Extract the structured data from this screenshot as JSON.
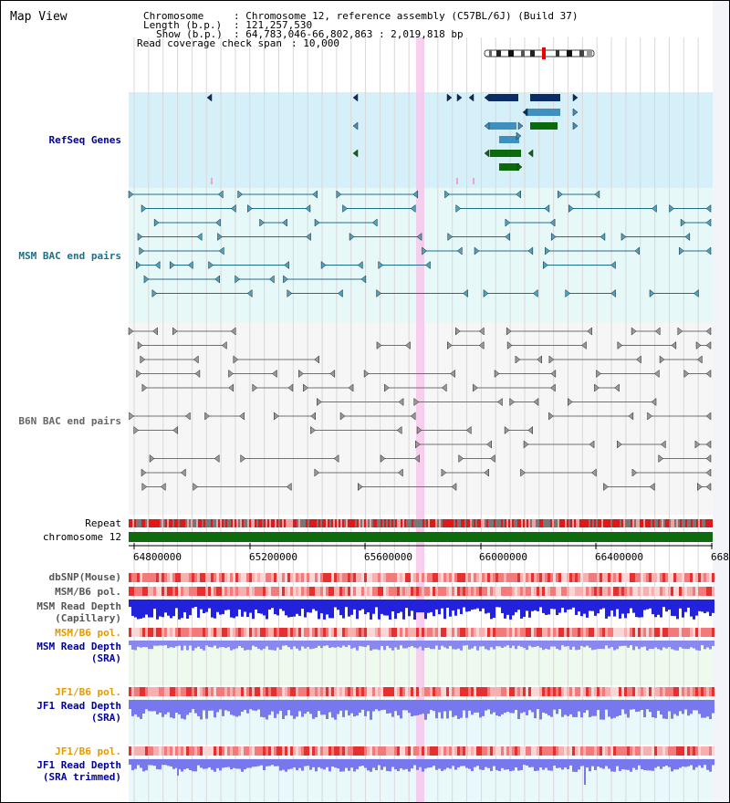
{
  "header": {
    "title": "Map View",
    "chromosome_label": "Chromosome",
    "chromosome_value": ": Chromosome 12, reference assembly (C57BL/6J) (Build 37)",
    "length_label": "Length (b.p.)",
    "length_value": ": 121,257,530",
    "show_label": "Show (b.p.)",
    "show_value": ": 64,783,046-66,802,863 : 2,019,818 bp",
    "coverage_label": "Read coverage check span",
    "coverage_value": ": 10,000"
  },
  "tracks": {
    "refseq": "RefSeq Genes",
    "msm_bac": "MSM BAC end pairs",
    "b6n_bac": "B6N BAC end pairs",
    "repeat": "Repeat",
    "chromosome": "chromosome 12",
    "dbsnp": "dbSNP(Mouse)",
    "msm_b6_pol_1": "MSM/B6 pol.",
    "msm_read_depth_cap_1": "MSM Read Depth",
    "msm_read_depth_cap_2": "(Capillary)",
    "msm_b6_pol_2": "MSM/B6 pol.",
    "msm_read_depth_sra_1": "MSM Read Depth",
    "msm_read_depth_sra_2": "(SRA)",
    "jf1_b6_pol_1": "JF1/B6 pol.",
    "jf1_read_depth_sra_1": "JF1 Read Depth",
    "jf1_read_depth_sra_2": "(SRA)",
    "jf1_b6_pol_2": "JF1/B6 pol.",
    "jf1_read_depth_trim_1": "JF1 Read Depth",
    "jf1_read_depth_trim_2": "(SRA trimmed)"
  },
  "axis": {
    "ticks": [
      "64800000",
      "65200000",
      "65600000",
      "66000000",
      "66400000",
      "668"
    ]
  },
  "colors": {
    "refseq_bg": "#d6f0fa",
    "msm_bg": "#e6f8f8",
    "b6n_bg": "#f6f6f6",
    "highlight": "#f7c7ec",
    "gene_dark": "#0b2d66",
    "gene_mid": "#3f8fbf",
    "gene_green": "#0b6a0b",
    "msm_line": "#1e6f8a",
    "b6n_line": "#707070",
    "chrom_bar": "#0d6b0d",
    "depth_blue": "#2222dd",
    "depth_light": "#7777ee",
    "label_blue": "#00009c",
    "label_orange": "#e39a00"
  }
}
